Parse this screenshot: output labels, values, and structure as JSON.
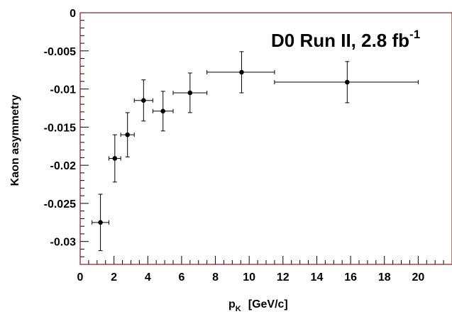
{
  "chart_data": {
    "type": "scatter",
    "title": "D0 Run II, 2.8 fb",
    "title_superscript": "-1",
    "xlabel": "p",
    "xlabel_subscript": "K",
    "xlabel_unit": "[GeV/c]",
    "ylabel": "Kaon asymmetry",
    "xlim": [
      0,
      22
    ],
    "ylim": [
      -0.033,
      0
    ],
    "x_ticks": [
      0,
      2,
      4,
      6,
      8,
      10,
      12,
      14,
      16,
      18,
      20
    ],
    "x_tick_labels": [
      "0",
      "2",
      "4",
      "6",
      "8",
      "10",
      "12",
      "14",
      "16",
      "18",
      "20"
    ],
    "y_ticks": [
      0,
      -0.005,
      -0.01,
      -0.015,
      -0.02,
      -0.025,
      -0.03
    ],
    "y_tick_labels": [
      "0",
      "-0.005",
      "-0.01",
      "-0.015",
      "-0.02",
      "-0.025",
      "-0.03"
    ],
    "grid": false,
    "legend": "none",
    "frame_color": "#8b1a1a",
    "marker_color": "#000000",
    "points": [
      {
        "x": 1.2,
        "x_low": 0.7,
        "x_high": 1.7,
        "y": -0.0275,
        "y_err": 0.0037
      },
      {
        "x": 2.05,
        "x_low": 1.7,
        "x_high": 2.4,
        "y": -0.0191,
        "y_err": 0.0031
      },
      {
        "x": 2.8,
        "x_low": 2.4,
        "x_high": 3.2,
        "y": -0.016,
        "y_err": 0.0029
      },
      {
        "x": 3.75,
        "x_low": 3.2,
        "x_high": 4.3,
        "y": -0.0115,
        "y_err": 0.0027
      },
      {
        "x": 4.9,
        "x_low": 4.3,
        "x_high": 5.5,
        "y": -0.0129,
        "y_err": 0.0026
      },
      {
        "x": 6.5,
        "x_low": 5.5,
        "x_high": 7.5,
        "y": -0.0105,
        "y_err": 0.0026
      },
      {
        "x": 9.55,
        "x_low": 7.5,
        "x_high": 11.5,
        "y": -0.0078,
        "y_err": 0.0027
      },
      {
        "x": 15.8,
        "x_low": 11.5,
        "x_high": 20.0,
        "y": -0.0091,
        "y_err": 0.0027
      }
    ]
  }
}
